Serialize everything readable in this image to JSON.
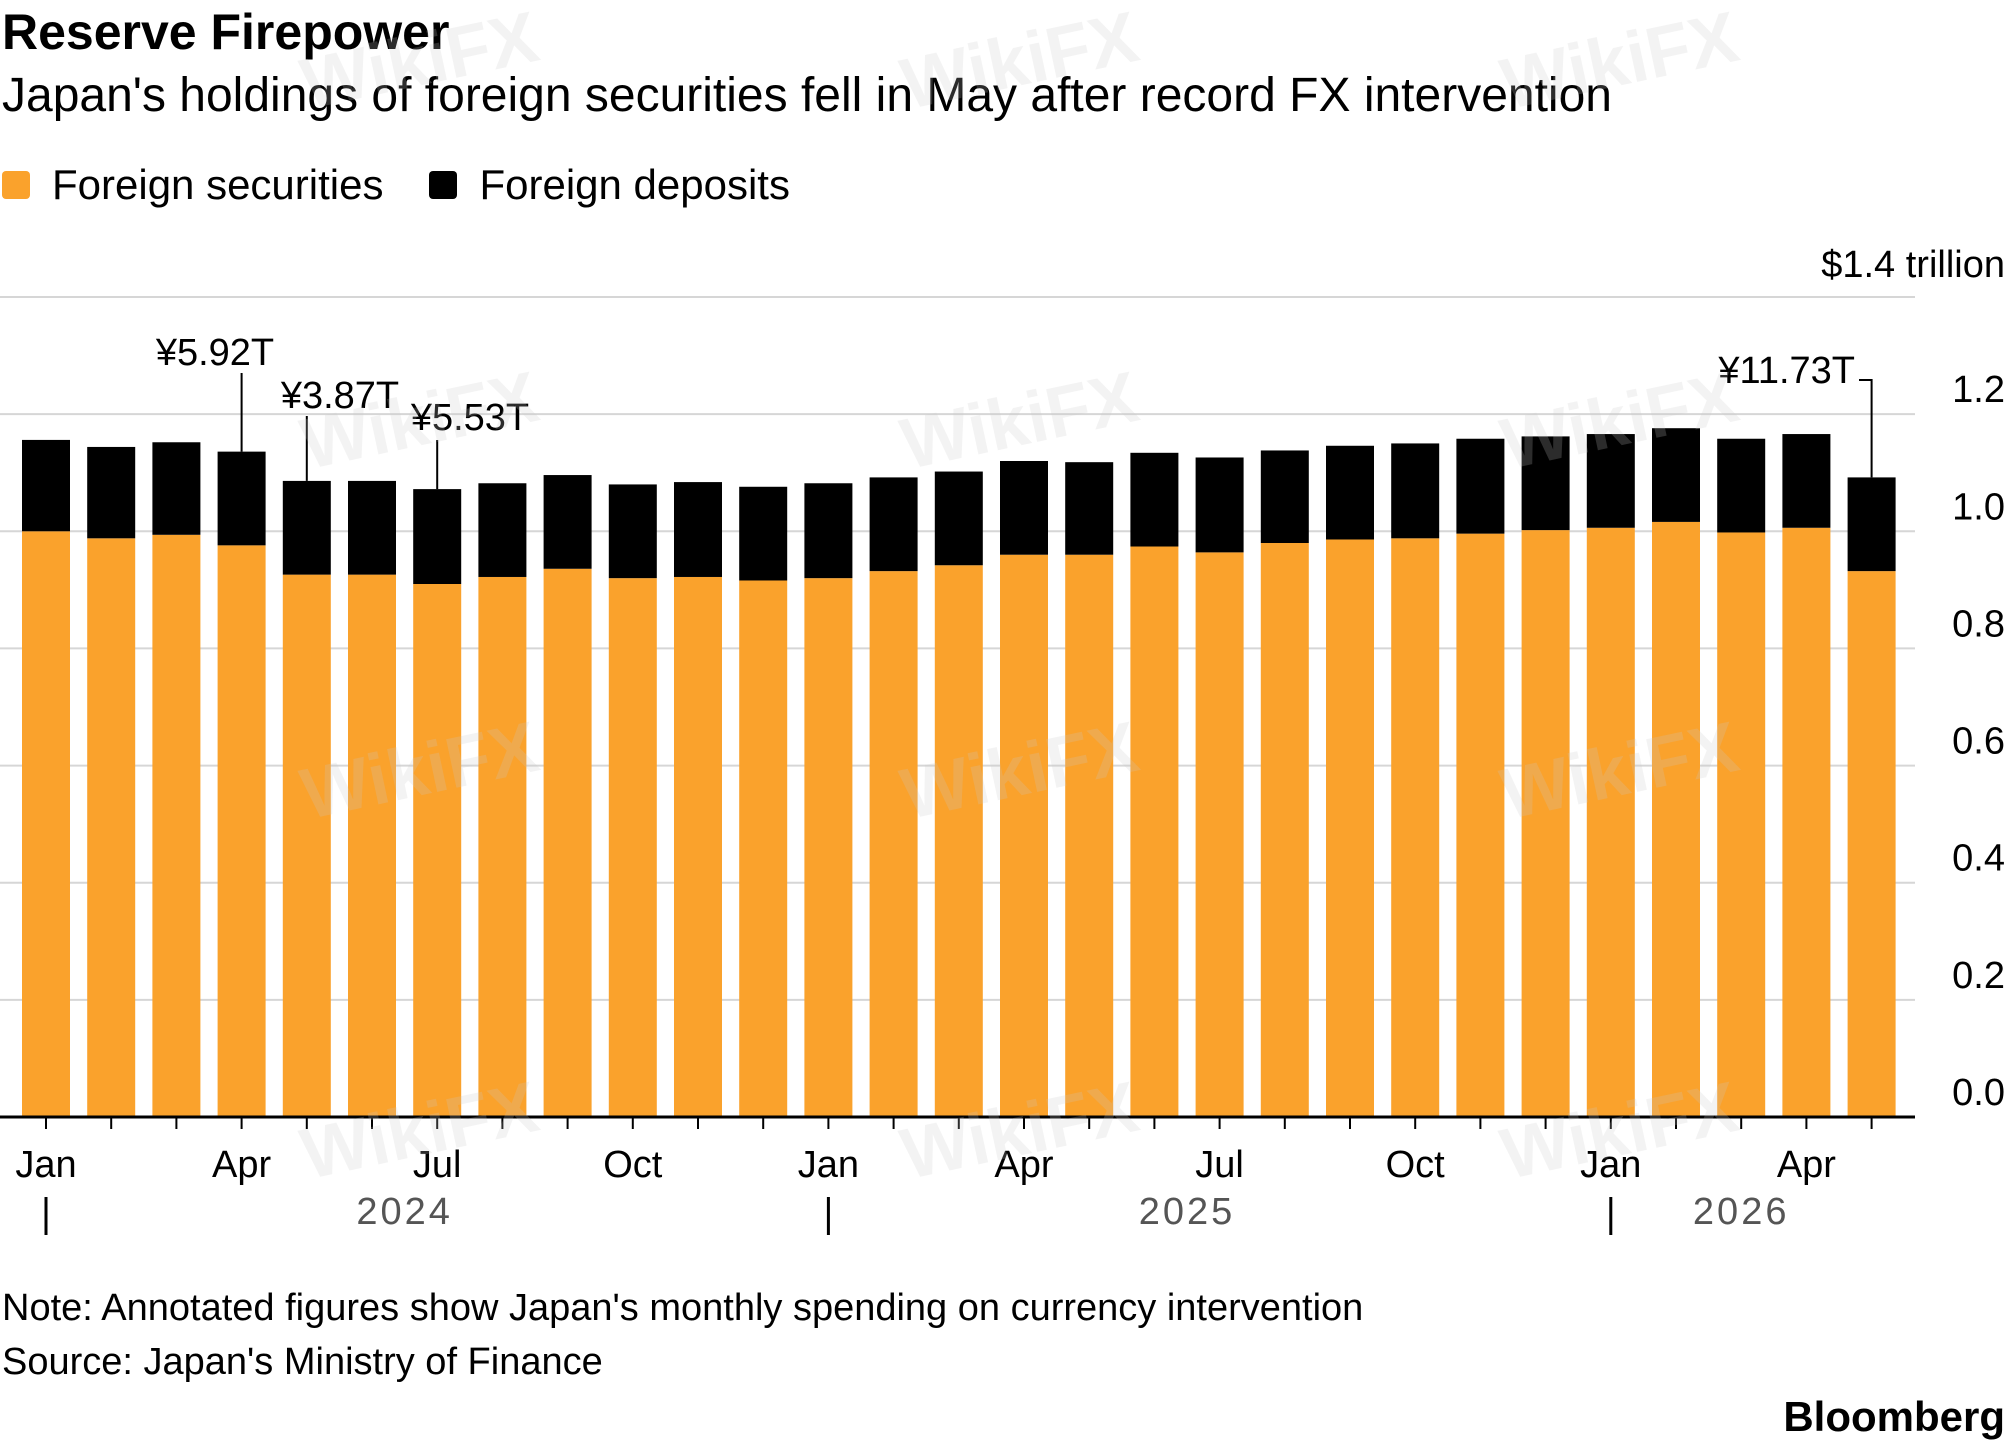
{
  "header": {
    "title": "Reserve Firepower",
    "subtitle": "Japan's holdings of foreign securities fell in May after record FX intervention"
  },
  "legend": [
    {
      "label": "Foreign securities",
      "color": "#FAA22C"
    },
    {
      "label": "Foreign deposits",
      "color": "#000000"
    }
  ],
  "footer": {
    "note": "Note: Annotated figures show Japan's monthly spending on currency intervention",
    "source": "Source: Japan's Ministry of Finance",
    "brand": "Bloomberg"
  },
  "watermark": "WikiFX",
  "chart_data": {
    "type": "bar",
    "stacked": true,
    "unit_label": "$1.4 trillion",
    "ylim": [
      0,
      1.4
    ],
    "yticks": [
      "0.0",
      "0.2",
      "0.4",
      "0.6",
      "0.8",
      "1.0",
      "1.2"
    ],
    "categories": [
      "2024-01",
      "2024-02",
      "2024-03",
      "2024-04",
      "2024-05",
      "2024-06",
      "2024-07",
      "2024-08",
      "2024-09",
      "2024-10",
      "2024-11",
      "2024-12",
      "2025-01",
      "2025-02",
      "2025-03",
      "2025-04",
      "2025-05",
      "2025-06",
      "2025-07",
      "2025-08",
      "2025-09",
      "2025-10",
      "2025-11",
      "2025-12",
      "2026-01",
      "2026-02",
      "2026-03",
      "2026-04",
      "2026-05"
    ],
    "x_tick_labels": [
      {
        "index": 0,
        "label": "Jan"
      },
      {
        "index": 3,
        "label": "Apr"
      },
      {
        "index": 6,
        "label": "Jul"
      },
      {
        "index": 9,
        "label": "Oct"
      },
      {
        "index": 12,
        "label": "Jan"
      },
      {
        "index": 15,
        "label": "Apr"
      },
      {
        "index": 18,
        "label": "Jul"
      },
      {
        "index": 21,
        "label": "Oct"
      },
      {
        "index": 24,
        "label": "Jan"
      },
      {
        "index": 27,
        "label": "Apr"
      }
    ],
    "year_labels": [
      {
        "label": "2024",
        "start_index": 0,
        "end_index": 11
      },
      {
        "label": "2025",
        "start_index": 12,
        "end_index": 23
      },
      {
        "label": "2026",
        "start_index": 24,
        "end_index": 28
      }
    ],
    "series": [
      {
        "name": "Foreign securities",
        "color": "#FAA22C",
        "values": [
          1.0,
          0.988,
          0.994,
          0.976,
          0.926,
          0.926,
          0.91,
          0.922,
          0.936,
          0.92,
          0.922,
          0.916,
          0.92,
          0.932,
          0.942,
          0.96,
          0.96,
          0.974,
          0.964,
          0.98,
          0.986,
          0.988,
          0.996,
          1.002,
          1.006,
          1.016,
          0.998,
          1.006,
          0.932
        ]
      },
      {
        "name": "Foreign deposits",
        "color": "#000000",
        "values": [
          0.156,
          0.156,
          0.158,
          0.16,
          0.16,
          0.16,
          0.162,
          0.16,
          0.16,
          0.16,
          0.162,
          0.16,
          0.162,
          0.16,
          0.16,
          0.16,
          0.158,
          0.16,
          0.162,
          0.158,
          0.16,
          0.162,
          0.162,
          0.16,
          0.16,
          0.16,
          0.16,
          0.16,
          0.16
        ]
      }
    ],
    "annotations": [
      {
        "index": 3,
        "label": "¥5.92T"
      },
      {
        "index": 4,
        "label": "¥3.87T"
      },
      {
        "index": 6,
        "label": "¥5.53T"
      },
      {
        "index": 28,
        "label": "¥11.73T"
      }
    ]
  }
}
